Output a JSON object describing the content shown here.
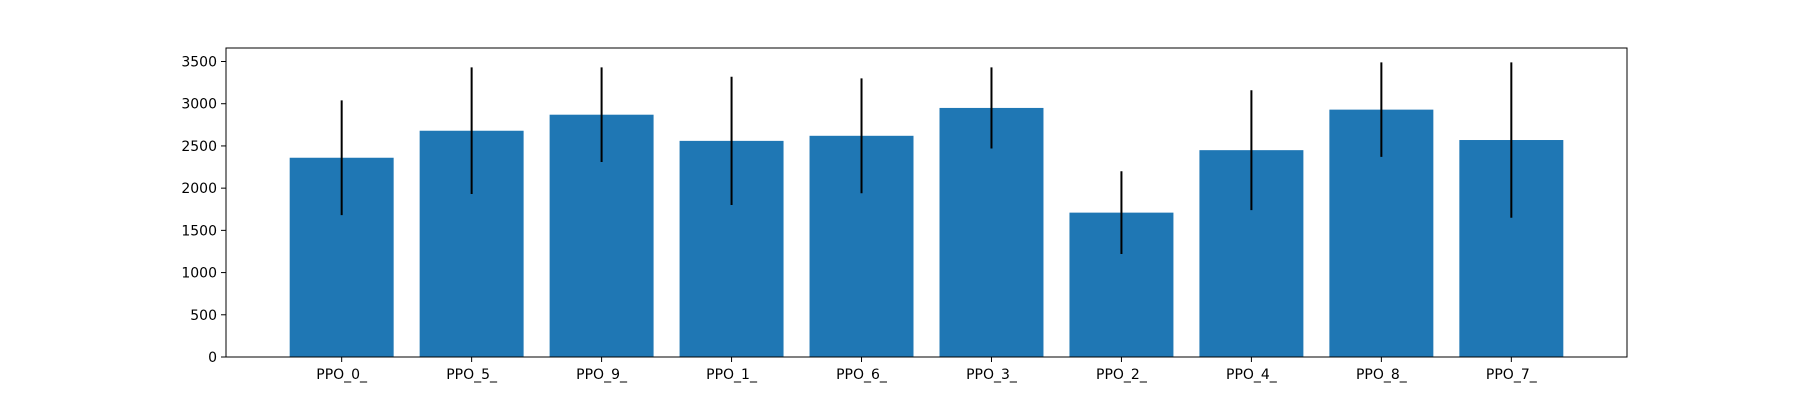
{
  "chart_data": {
    "type": "bar",
    "title": "",
    "xlabel": "",
    "ylabel": "",
    "categories": [
      "PPO_0_",
      "PPO_5_",
      "PPO_9_",
      "PPO_1_",
      "PPO_6_",
      "PPO_3_",
      "PPO_2_",
      "PPO_4_",
      "PPO_8_",
      "PPO_7_"
    ],
    "values": [
      2360,
      2680,
      2870,
      2560,
      2620,
      2950,
      1710,
      2450,
      2930,
      2570
    ],
    "error": [
      680,
      750,
      560,
      760,
      680,
      480,
      490,
      710,
      560,
      920
    ],
    "ylim": [
      0,
      3660
    ],
    "yticks": [
      0,
      500,
      1000,
      1500,
      2000,
      2500,
      3000,
      3500
    ],
    "grid": false,
    "legend": "none",
    "colors": {
      "bar": "#1f77b4",
      "error": "#000000",
      "axes": "#000000"
    }
  }
}
